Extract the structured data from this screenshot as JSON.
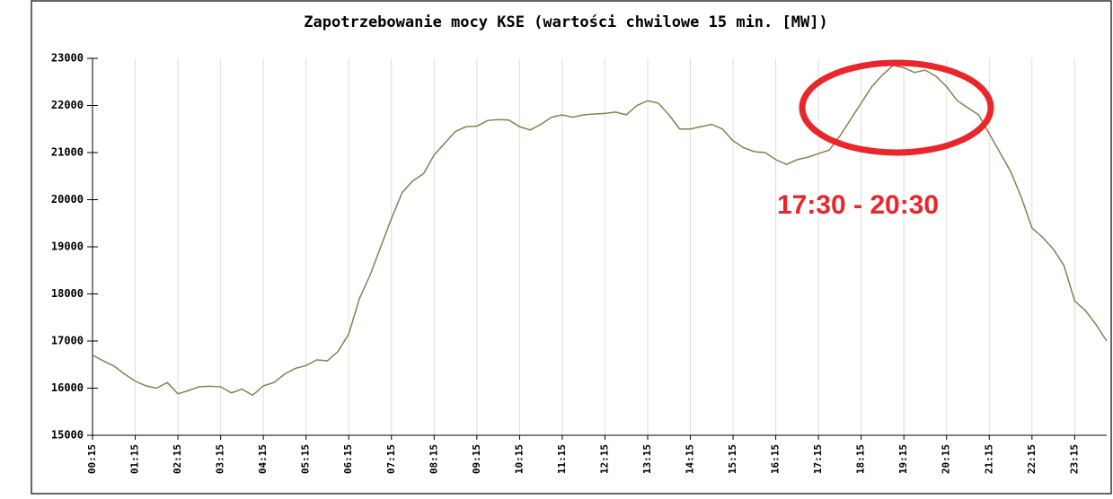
{
  "chart_data": {
    "type": "line",
    "title": "Zapotrzebowanie mocy KSE (wartości chwilowe 15 min. [MW])",
    "annotation": "17:30 - 20:30",
    "categories": [
      "00:15",
      null,
      null,
      null,
      "01:15",
      null,
      null,
      null,
      "02:15",
      null,
      null,
      null,
      "03:15",
      null,
      null,
      null,
      "04:15",
      null,
      null,
      null,
      "05:15",
      null,
      null,
      null,
      "06:15",
      null,
      null,
      null,
      "07:15",
      null,
      null,
      null,
      "08:15",
      null,
      null,
      null,
      "09:15",
      null,
      null,
      null,
      "10:15",
      null,
      null,
      null,
      "11:15",
      null,
      null,
      null,
      "12:15",
      null,
      null,
      null,
      "13:15",
      null,
      null,
      null,
      "14:15",
      null,
      null,
      null,
      "15:15",
      null,
      null,
      null,
      "16:15",
      null,
      null,
      null,
      "17:15",
      null,
      null,
      null,
      "18:15",
      null,
      null,
      null,
      "19:15",
      null,
      null,
      null,
      "20:15",
      null,
      null,
      null,
      "21:15",
      null,
      null,
      null,
      "22:15",
      null,
      null,
      null,
      "23:15",
      null,
      null,
      null
    ],
    "values": [
      16700,
      16580,
      16470,
      16300,
      16150,
      16050,
      16000,
      16120,
      15880,
      15950,
      16030,
      16040,
      16030,
      15900,
      15980,
      15850,
      16050,
      16120,
      16300,
      16420,
      16480,
      16600,
      16580,
      16780,
      17150,
      17900,
      18400,
      19000,
      19600,
      20150,
      20400,
      20550,
      20950,
      21200,
      21450,
      21550,
      21560,
      21680,
      21700,
      21690,
      21550,
      21480,
      21600,
      21750,
      21800,
      21750,
      21800,
      21820,
      21830,
      21860,
      21800,
      22000,
      22100,
      22050,
      21800,
      21500,
      21500,
      21550,
      21600,
      21500,
      21250,
      21100,
      21020,
      21000,
      20850,
      20750,
      20850,
      20900,
      20980,
      21050,
      21350,
      21700,
      22050,
      22400,
      22650,
      22850,
      22800,
      22700,
      22750,
      22620,
      22400,
      22100,
      21950,
      21800,
      21400,
      21000,
      20600,
      20050,
      19400,
      19200,
      18950,
      18600,
      17850,
      17650,
      17350,
      17000
    ],
    "color": "#8a7f4e",
    "ylim": [
      15000,
      23000
    ],
    "yticks": [
      15000,
      16000,
      17000,
      18000,
      19000,
      20000,
      21000,
      22000,
      23000
    ],
    "grid": true
  }
}
